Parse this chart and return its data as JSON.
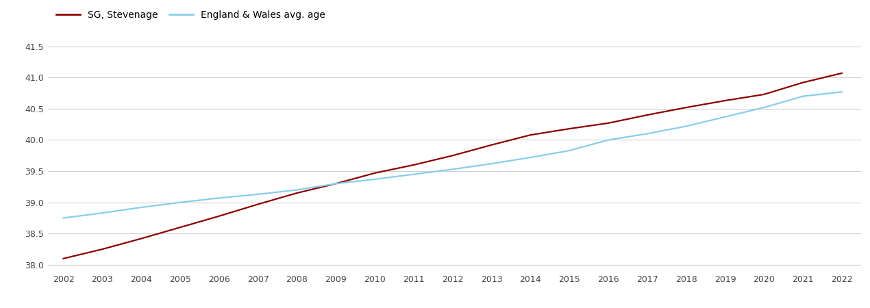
{
  "years": [
    2002,
    2003,
    2004,
    2005,
    2006,
    2007,
    2008,
    2009,
    2010,
    2011,
    2012,
    2013,
    2014,
    2015,
    2016,
    2017,
    2018,
    2019,
    2020,
    2021,
    2022
  ],
  "sg_stevenage": [
    38.1,
    38.25,
    38.42,
    38.6,
    38.78,
    38.97,
    39.15,
    39.3,
    39.47,
    39.6,
    39.75,
    39.92,
    40.08,
    40.18,
    40.27,
    40.4,
    40.52,
    40.63,
    40.73,
    40.92,
    41.07
  ],
  "england_wales": [
    38.75,
    38.83,
    38.92,
    39.0,
    39.07,
    39.13,
    39.2,
    39.3,
    39.37,
    39.45,
    39.53,
    39.62,
    39.72,
    39.83,
    40.0,
    40.1,
    40.22,
    40.37,
    40.52,
    40.7,
    40.77
  ],
  "sg_color": "#8B0000",
  "ew_color": "#87CEEB",
  "sg_label": "SG, Stevenage",
  "ew_label": "England & Wales avg. age",
  "ylim": [
    37.9,
    41.65
  ],
  "yticks": [
    38.0,
    38.5,
    39.0,
    39.5,
    40.0,
    40.5,
    41.0,
    41.5
  ],
  "xlim_left": 2001.6,
  "xlim_right": 2022.5,
  "bg_color": "#ffffff",
  "grid_color": "#d0d0d0",
  "linewidth": 1.6,
  "tick_fontsize": 9,
  "legend_fontsize": 10
}
